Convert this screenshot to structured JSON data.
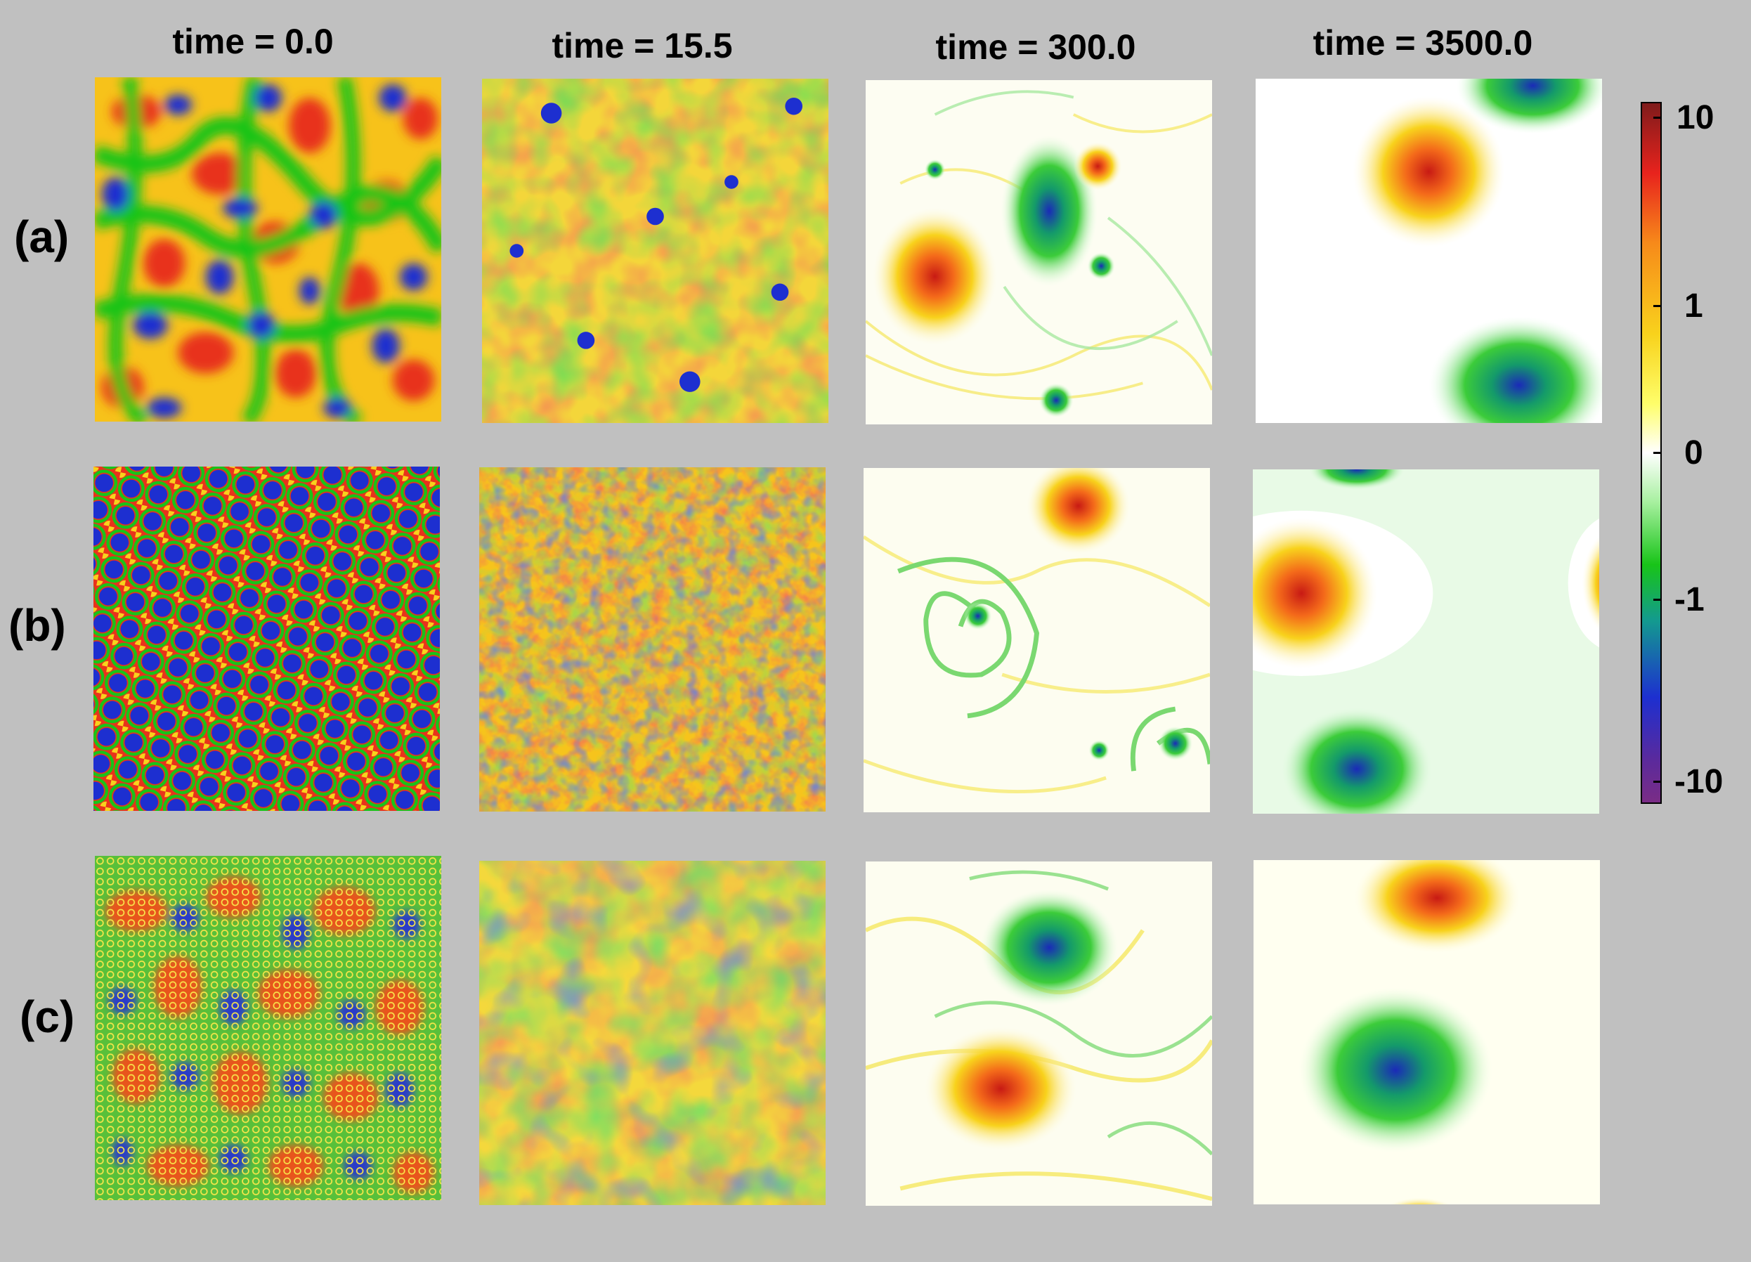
{
  "column_titles": [
    "time = 0.0",
    "time = 15.5",
    "time = 300.0",
    "time = 3500.0"
  ],
  "row_labels": [
    "(a)",
    "(b)",
    "(c)"
  ],
  "colorbar": {
    "ticks": [
      "10",
      "1",
      "0",
      "-1",
      "-10"
    ],
    "colors": [
      "#7f1b1b",
      "#e8231d",
      "#f78a1a",
      "#f8d21c",
      "#fefe6a",
      "#ffffff",
      "#a8f0a0",
      "#18c418",
      "#139a8f",
      "#1d2fd0",
      "#5b2a9c",
      "#7a2d86"
    ]
  },
  "colors": {
    "background": "#c0c0c0"
  }
}
